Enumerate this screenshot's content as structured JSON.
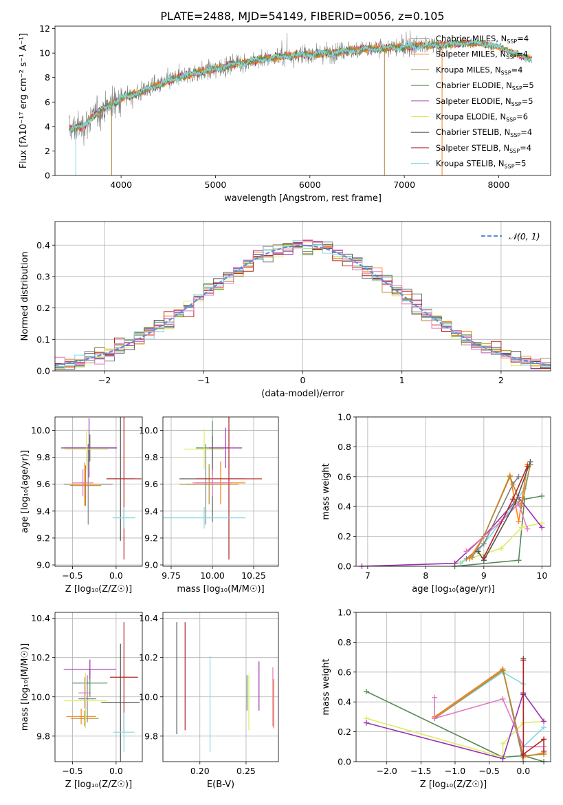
{
  "colors": {
    "Chabrier MILES": "#808080",
    "Salpeter MILES": "#ff7f0e",
    "Kroupa MILES": "#b08a3a",
    "Chabrier ELODIE": "#558855",
    "Salpeter ELODIE": "#9b30b0",
    "Kroupa ELODIE": "#d8ee60",
    "Chabrier STELIB": "#555555",
    "Salpeter STELIB": "#b22222",
    "Kroupa STELIB": "#80d8e0",
    "pink": "#e377c2",
    "gauss": "#5b8fd9"
  },
  "chart_data": [
    {
      "type": "line",
      "title": "PLATE=2488, MJD=54149, FIBERID=0056, z=0.105",
      "xlabel": "wavelength [Angstrom, rest frame]",
      "ylabel": "Flux [fλ10⁻¹⁷ erg cm⁻² s⁻¹ A⁻¹]",
      "xlim": [
        3300,
        8550
      ],
      "ylim": [
        0,
        12.2
      ],
      "xticks": [
        4000,
        5000,
        6000,
        7000,
        8000
      ],
      "yticks": [
        0,
        2,
        4,
        6,
        8,
        10,
        12
      ],
      "grid": false,
      "legend": "right",
      "legend_entries": [
        {
          "model": "Chabrier MILES",
          "n": "4"
        },
        {
          "model": "Salpeter MILES",
          "n": "4"
        },
        {
          "model": "Kroupa MILES",
          "n": "4"
        },
        {
          "model": "Chabrier ELODIE",
          "n": "5"
        },
        {
          "model": "Salpeter ELODIE",
          "n": "5"
        },
        {
          "model": "Kroupa ELODIE",
          "n": "6"
        },
        {
          "model": "Chabrier STELIB",
          "n": "4"
        },
        {
          "model": "Salpeter STELIB",
          "n": "4"
        },
        {
          "model": "Kroupa STELIB",
          "n": "5"
        }
      ],
      "legend_suffix": "SSP",
      "continuum": {
        "x": [
          3450,
          3600,
          3700,
          3800,
          3900,
          4000,
          4200,
          4400,
          4600,
          4800,
          5000,
          5200,
          5400,
          5600,
          5800,
          6000,
          6200,
          6400,
          6600,
          6800,
          7000,
          7200,
          7400,
          7600,
          7800,
          8000,
          8200,
          8350
        ],
        "y": [
          3.8,
          4.0,
          4.8,
          5.4,
          5.8,
          6.3,
          6.8,
          7.4,
          8.0,
          8.4,
          8.7,
          9.1,
          9.4,
          9.6,
          9.8,
          9.9,
          10.0,
          10.2,
          10.3,
          10.4,
          10.5,
          10.6,
          10.7,
          10.8,
          10.8,
          10.5,
          9.9,
          9.5
        ]
      }
    },
    {
      "type": "line",
      "xlabel": "(data-model)/error",
      "ylabel": "Normed distribution",
      "xlim": [
        -2.5,
        2.5
      ],
      "ylim": [
        0,
        0.475
      ],
      "xticks": [
        -2,
        -1,
        0,
        1,
        2
      ],
      "yticks": [
        0.0,
        0.1,
        0.2,
        0.3,
        0.4
      ],
      "grid": true,
      "legend": "top-right",
      "legend_label": "𝒩(0, 1)",
      "bin_width": 0.1
    },
    {
      "type": "scatter",
      "xlabel": "Z [log₁₀(Z/Z☉)]",
      "ylabel": "age  [log₁₀(age/yr)]",
      "xlim": [
        -0.7,
        0.3
      ],
      "ylim": [
        8.99,
        10.1
      ],
      "xticks": [
        -0.5,
        0.0
      ],
      "yticks": [
        9.0,
        9.2,
        9.4,
        9.6,
        9.8,
        10.0
      ],
      "grid": true,
      "points": [
        {
          "s": "Chabrier MILES",
          "x": -0.32,
          "y": 9.6,
          "ex": 0.28,
          "ey": 0.3
        },
        {
          "s": "Salpeter MILES",
          "x": -0.36,
          "y": 9.6,
          "ex": 0.17,
          "ey": 0.16
        },
        {
          "s": "Kroupa MILES",
          "x": -0.35,
          "y": 9.59,
          "ex": 0.18,
          "ey": 0.15
        },
        {
          "s": "Chabrier ELODIE",
          "x": -0.3,
          "y": 9.87,
          "ex": 0.3,
          "ey": 0.1
        },
        {
          "s": "Salpeter ELODIE",
          "x": -0.31,
          "y": 9.87,
          "ex": 0.32,
          "ey": 0.22
        },
        {
          "s": "Kroupa ELODIE",
          "x": -0.34,
          "y": 9.86,
          "ex": 0.25,
          "ey": 0.15
        },
        {
          "s": "Chabrier STELIB",
          "x": 0.05,
          "y": 9.64,
          "ex": 0.16,
          "ey": 0.46
        },
        {
          "s": "Salpeter STELIB",
          "x": 0.09,
          "y": 9.64,
          "ex": 0.2,
          "ey": 0.6
        },
        {
          "s": "Kroupa STELIB",
          "x": 0.09,
          "y": 9.35,
          "ex": 0.13,
          "ey": 0.08
        },
        {
          "s": "pink",
          "x": -0.38,
          "y": 9.61,
          "ex": 0.12,
          "ey": 0.1
        }
      ]
    },
    {
      "type": "scatter",
      "xlabel": "mass [log₁₀(M/M☉)]",
      "ylabel": "",
      "xlim": [
        9.7,
        10.4
      ],
      "ylim": [
        8.99,
        10.1
      ],
      "xticks": [
        9.75,
        10.0,
        10.25
      ],
      "yticks": [
        9.0,
        9.2,
        9.4,
        9.6,
        9.8,
        10.0
      ],
      "grid": true,
      "points": [
        {
          "s": "Chabrier MILES",
          "x": 9.96,
          "y": 9.6,
          "ex": 0.12,
          "ey": 0.3
        },
        {
          "s": "Salpeter MILES",
          "x": 10.05,
          "y": 9.61,
          "ex": 0.15,
          "ey": 0.16
        },
        {
          "s": "Kroupa MILES",
          "x": 9.98,
          "y": 9.6,
          "ex": 0.18,
          "ey": 0.15
        },
        {
          "s": "Chabrier ELODIE",
          "x": 10.0,
          "y": 9.87,
          "ex": 0.1,
          "ey": 0.2
        },
        {
          "s": "Salpeter ELODIE",
          "x": 10.08,
          "y": 9.87,
          "ex": 0.1,
          "ey": 0.15
        },
        {
          "s": "Kroupa ELODIE",
          "x": 9.95,
          "y": 9.86,
          "ex": 0.12,
          "ey": 0.15
        },
        {
          "s": "Chabrier STELIB",
          "x": 10.0,
          "y": 9.64,
          "ex": 0.2,
          "ey": 0.32
        },
        {
          "s": "Salpeter STELIB",
          "x": 10.1,
          "y": 9.64,
          "ex": 0.2,
          "ey": 0.6
        },
        {
          "s": "Kroupa STELIB",
          "x": 9.95,
          "y": 9.35,
          "ex": 0.25,
          "ey": 0.08
        },
        {
          "s": "pink",
          "x": 10.0,
          "y": 9.61,
          "ex": 0.12,
          "ey": 0.1
        }
      ]
    },
    {
      "type": "line",
      "xlabel": "age  [log₁₀(age/yr)]",
      "ylabel": "mass weight",
      "xlim": [
        6.8,
        10.15
      ],
      "ylim": [
        0,
        1.0
      ],
      "xticks": [
        7,
        8,
        9,
        10
      ],
      "yticks": [
        0.0,
        0.2,
        0.4,
        0.6,
        0.8,
        1.0
      ],
      "grid": true,
      "series": [
        {
          "s": "Chabrier ELODIE",
          "x": [
            8.5,
            9.6,
            9.7,
            10.0
          ],
          "y": [
            0.0,
            0.04,
            0.45,
            0.47
          ]
        },
        {
          "s": "Kroupa ELODIE",
          "x": [
            8.5,
            9.3,
            9.65,
            10.0
          ],
          "y": [
            0.02,
            0.12,
            0.26,
            0.29
          ]
        },
        {
          "s": "Salpeter ELODIE",
          "x": [
            6.9,
            8.5,
            9.0,
            9.6,
            10.0
          ],
          "y": [
            0.0,
            0.02,
            0.2,
            0.46,
            0.26
          ]
        },
        {
          "s": "Kroupa STELIB",
          "x": [
            8.6,
            8.9,
            9.4,
            9.7,
            9.8
          ],
          "y": [
            0.02,
            0.1,
            0.35,
            0.52,
            0.68
          ]
        },
        {
          "s": "Chabrier MILES",
          "x": [
            8.7,
            9.0,
            9.5,
            9.6
          ],
          "y": [
            0.05,
            0.15,
            0.55,
            0.6
          ]
        },
        {
          "s": "Salpeter MILES",
          "x": [
            8.75,
            9.0,
            9.45,
            9.6,
            9.75
          ],
          "y": [
            0.05,
            0.2,
            0.61,
            0.3,
            0.68
          ]
        },
        {
          "s": "Kroupa MILES",
          "x": [
            8.8,
            9.0,
            9.45,
            9.65,
            9.8
          ],
          "y": [
            0.06,
            0.2,
            0.6,
            0.4,
            0.68
          ]
        },
        {
          "s": "pink",
          "x": [
            8.7,
            9.3,
            9.6,
            9.75
          ],
          "y": [
            0.1,
            0.3,
            0.42,
            0.25
          ]
        },
        {
          "s": "Chabrier STELIB",
          "x": [
            8.9,
            9.0,
            9.55,
            9.8
          ],
          "y": [
            0.1,
            0.04,
            0.43,
            0.7
          ]
        },
        {
          "s": "Salpeter STELIB",
          "x": [
            9.0,
            9.5,
            9.75
          ],
          "y": [
            0.06,
            0.45,
            0.67
          ]
        }
      ]
    },
    {
      "type": "scatter",
      "xlabel": "Z [log₁₀(Z/Z☉)]",
      "ylabel": "mass [log₁₀(M/M☉)]",
      "xlim": [
        -0.7,
        0.3
      ],
      "ylim": [
        9.67,
        10.43
      ],
      "xticks": [
        -0.5,
        0.0
      ],
      "yticks": [
        9.8,
        10.0,
        10.2,
        10.4
      ],
      "grid": true,
      "points": [
        {
          "s": "Chabrier MILES",
          "x": -0.33,
          "y": 9.99,
          "ex": 0.1,
          "ey": 0.12
        },
        {
          "s": "Salpeter MILES",
          "x": -0.4,
          "y": 9.9,
          "ex": 0.17,
          "ey": 0.04
        },
        {
          "s": "Kroupa MILES",
          "x": -0.36,
          "y": 9.89,
          "ex": 0.16,
          "ey": 0.04
        },
        {
          "s": "Chabrier ELODIE",
          "x": -0.3,
          "y": 10.07,
          "ex": 0.2,
          "ey": 0.07
        },
        {
          "s": "Salpeter ELODIE",
          "x": -0.3,
          "y": 10.14,
          "ex": 0.3,
          "ey": 0.05
        },
        {
          "s": "Kroupa ELODIE",
          "x": -0.35,
          "y": 9.98,
          "ex": 0.25,
          "ey": 0.14
        },
        {
          "s": "Chabrier STELIB",
          "x": 0.05,
          "y": 9.97,
          "ex": 0.22,
          "ey": 0.3
        },
        {
          "s": "Salpeter STELIB",
          "x": 0.09,
          "y": 10.1,
          "ex": 0.16,
          "ey": 0.28
        },
        {
          "s": "Kroupa STELIB",
          "x": 0.09,
          "y": 9.82,
          "ex": 0.12,
          "ey": 0.1
        },
        {
          "s": "pink",
          "x": -0.36,
          "y": 10.02,
          "ex": 0.07,
          "ey": 0.08
        }
      ]
    },
    {
      "type": "scatter",
      "xlabel": "E(B-V)",
      "ylabel": "",
      "xlim": [
        0.16,
        0.285
      ],
      "ylim": [
        9.67,
        10.43
      ],
      "xticks": [
        0.2,
        0.25
      ],
      "yticks": [
        9.8,
        10.0,
        10.2,
        10.4
      ],
      "grid": true,
      "vsegments": [
        {
          "s": "Chabrier STELIB",
          "x": 0.175,
          "y0": 9.81,
          "y1": 10.38
        },
        {
          "s": "Salpeter STELIB",
          "x": 0.184,
          "y0": 9.83,
          "y1": 10.38
        },
        {
          "s": "Kroupa STELIB",
          "x": 0.211,
          "y0": 9.72,
          "y1": 10.21
        },
        {
          "s": "Chabrier ELODIE",
          "x": 0.251,
          "y0": 9.93,
          "y1": 10.11
        },
        {
          "s": "Kroupa ELODIE",
          "x": 0.253,
          "y0": 9.83,
          "y1": 10.11
        },
        {
          "s": "Salpeter ELODIE",
          "x": 0.264,
          "y0": 9.93,
          "y1": 10.18
        },
        {
          "s": "pink",
          "x": 0.279,
          "y0": 9.85,
          "y1": 10.15
        },
        {
          "s": "Salpeter MILES",
          "x": 0.28,
          "y0": 9.84,
          "y1": 10.09
        }
      ]
    },
    {
      "type": "line",
      "xlabel": "Z [log₁₀(Z/Z☉)]",
      "ylabel": "mass weight",
      "xlim": [
        -2.45,
        0.4
      ],
      "ylim": [
        0,
        1.0
      ],
      "xticks": [
        -2.0,
        -1.5,
        -1.0,
        -0.5,
        0.0
      ],
      "yticks": [
        0.0,
        0.2,
        0.4,
        0.6,
        0.8,
        1.0
      ],
      "grid": true,
      "series": [
        {
          "s": "Chabrier ELODIE",
          "x": [
            -2.3,
            -0.3,
            0.0,
            0.3
          ],
          "y": [
            0.47,
            0.03,
            0.04,
            0.0
          ]
        },
        {
          "s": "Kroupa ELODIE",
          "x": [
            -2.3,
            -0.3,
            -0.3,
            0.0,
            0.3
          ],
          "y": [
            0.29,
            0.03,
            0.12,
            0.26,
            0.27
          ]
        },
        {
          "s": "Salpeter ELODIE",
          "x": [
            -2.3,
            -0.3,
            0.0,
            0.3
          ],
          "y": [
            0.26,
            0.02,
            0.46,
            0.27
          ]
        },
        {
          "s": "Kroupa STELIB",
          "x": [
            -1.3,
            -0.3,
            0.0,
            0.0,
            0.3
          ],
          "y": [
            0.29,
            0.6,
            0.52,
            0.1,
            0.23
          ]
        },
        {
          "s": "Chabrier MILES",
          "x": [
            -1.3,
            -0.3,
            0.0
          ],
          "y": [
            0.3,
            0.62,
            0.0
          ]
        },
        {
          "s": "Salpeter MILES",
          "x": [
            -1.3,
            -0.3,
            0.0,
            0.3
          ],
          "y": [
            0.3,
            0.62,
            0.03,
            0.06
          ]
        },
        {
          "s": "Kroupa MILES",
          "x": [
            -1.3,
            -0.3,
            0.0,
            0.3
          ],
          "y": [
            0.29,
            0.61,
            0.04,
            0.05
          ]
        },
        {
          "s": "pink",
          "x": [
            -1.3,
            -1.3,
            -0.3,
            0.0,
            0.3
          ],
          "y": [
            0.43,
            0.29,
            0.42,
            0.1,
            0.1
          ]
        },
        {
          "s": "Chabrier STELIB",
          "x": [
            0.0,
            0.0,
            0.0
          ],
          "y": [
            0.69,
            0.04,
            0.45
          ]
        },
        {
          "s": "Salpeter STELIB",
          "x": [
            0.0,
            0.0,
            0.3,
            0.3
          ],
          "y": [
            0.68,
            0.05,
            0.15,
            0.07
          ]
        }
      ]
    }
  ]
}
